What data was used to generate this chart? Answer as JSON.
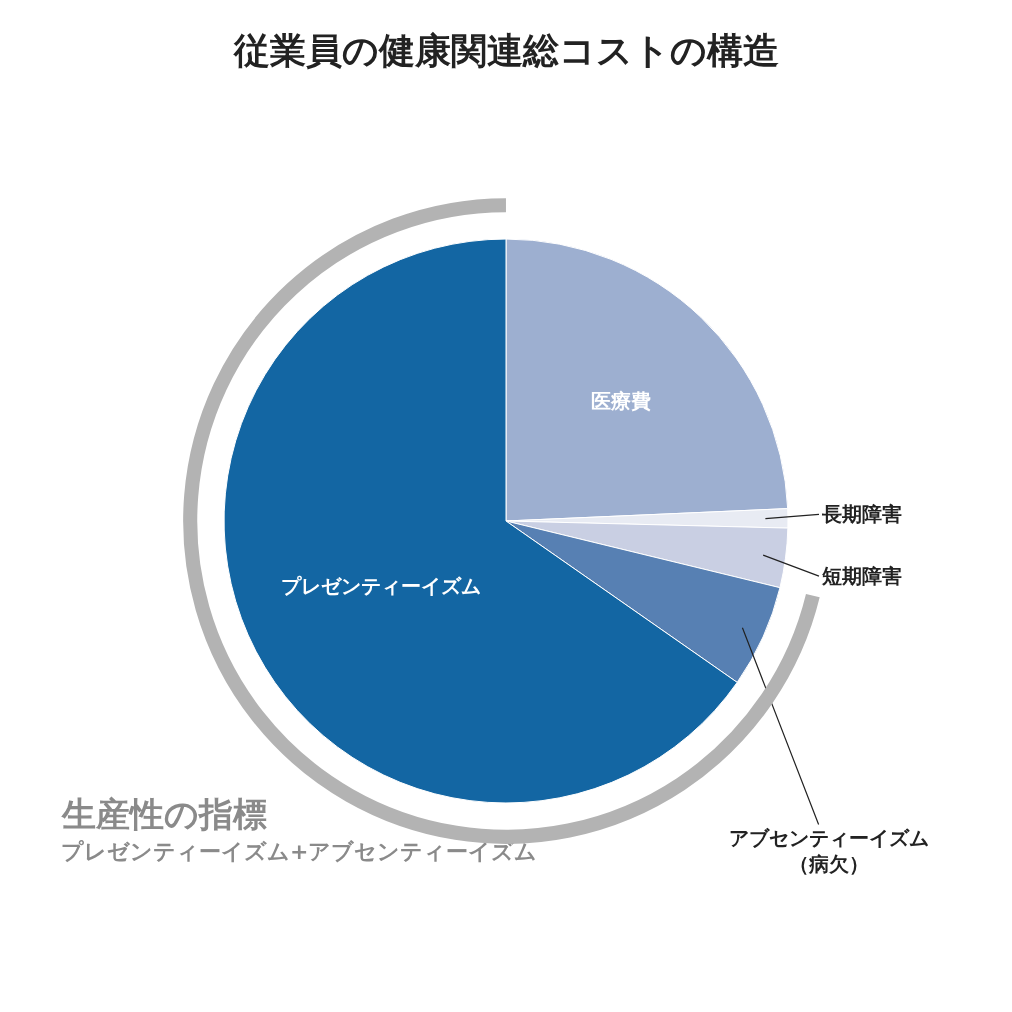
{
  "chart_data": {
    "type": "pie",
    "title": "従業員の健康関連総コストの構造",
    "categories": [
      "医療費",
      "長期障害",
      "短期障害",
      "アブセンティーイズム（病欠）",
      "プレゼンティーイズム"
    ],
    "values": [
      24.3,
      1.1,
      3.4,
      5.9,
      65.3
    ],
    "colors": [
      "#9dafd0",
      "#e8ebf3",
      "#c9cfe3",
      "#5780b3",
      "#1366a3"
    ],
    "legend": false,
    "annotations": [
      "生産性の指標",
      "プレゼンティーイズム+アブセンティーイズム"
    ]
  }
}
